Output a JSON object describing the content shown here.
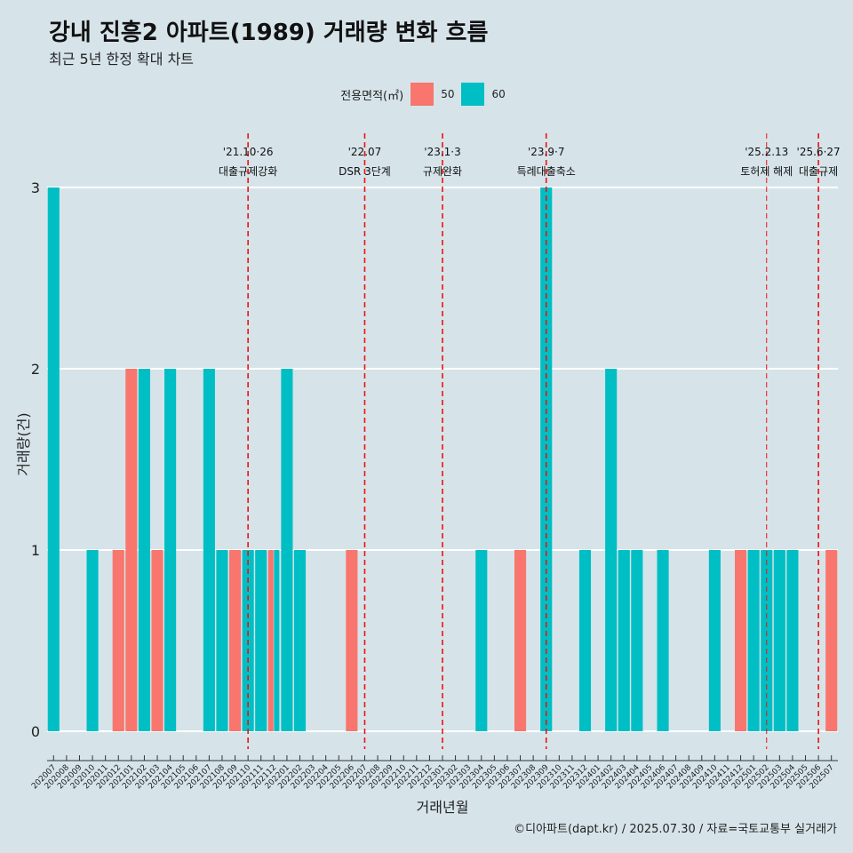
{
  "chart_data": {
    "type": "bar",
    "title": "강내 진흥2 아파트(1989) 거래량 변화 흐름",
    "subtitle": "최근 5년 한정 확대 차트",
    "xlabel": "거래년월",
    "ylabel": "거래량(건)",
    "ylim": [
      0,
      3
    ],
    "yticks": [
      0,
      1,
      2,
      3
    ],
    "legend": {
      "title": "전용면적(㎡)",
      "position": "top",
      "entries": [
        {
          "name": "50",
          "color": "#f8766d"
        },
        {
          "name": "60",
          "color": "#00bfc4"
        }
      ]
    },
    "categories": [
      "202007",
      "202008",
      "202009",
      "202010",
      "202011",
      "202012",
      "202101",
      "202102",
      "202103",
      "202104",
      "202105",
      "202106",
      "202107",
      "202108",
      "202109",
      "202110",
      "202111",
      "202112",
      "202201",
      "202202",
      "202203",
      "202204",
      "202205",
      "202206",
      "202207",
      "202208",
      "202209",
      "202210",
      "202211",
      "202212",
      "202301",
      "202302",
      "202303",
      "202304",
      "202305",
      "202306",
      "202307",
      "202308",
      "202309",
      "202310",
      "202311",
      "202312",
      "202401",
      "202402",
      "202403",
      "202404",
      "202405",
      "202406",
      "202407",
      "202408",
      "202409",
      "202410",
      "202411",
      "202412",
      "202501",
      "202502",
      "202503",
      "202504",
      "202505",
      "202506",
      "202507"
    ],
    "bars": [
      {
        "month": "202007",
        "area": "60",
        "value": 3
      },
      {
        "month": "202010",
        "area": "60",
        "value": 1
      },
      {
        "month": "202012",
        "area": "50",
        "value": 1
      },
      {
        "month": "202101",
        "area": "50",
        "value": 2
      },
      {
        "month": "202102",
        "area": "60",
        "value": 2
      },
      {
        "month": "202103",
        "area": "50",
        "value": 1
      },
      {
        "month": "202104",
        "area": "60",
        "value": 2
      },
      {
        "month": "202107",
        "area": "60",
        "value": 2
      },
      {
        "month": "202108",
        "area": "60",
        "value": 1
      },
      {
        "month": "202109",
        "area": "50",
        "value": 1
      },
      {
        "month": "202110",
        "area": "60",
        "value": 1
      },
      {
        "month": "202111",
        "area": "60",
        "value": 1
      },
      {
        "month": "202112",
        "area": "50",
        "value": 1
      },
      {
        "month": "202112",
        "area": "60",
        "value": 1
      },
      {
        "month": "202201",
        "area": "60",
        "value": 2
      },
      {
        "month": "202202",
        "area": "60",
        "value": 1
      },
      {
        "month": "202206",
        "area": "50",
        "value": 1
      },
      {
        "month": "202304",
        "area": "60",
        "value": 1
      },
      {
        "month": "202307",
        "area": "50",
        "value": 1
      },
      {
        "month": "202309",
        "area": "60",
        "value": 3
      },
      {
        "month": "202312",
        "area": "60",
        "value": 1
      },
      {
        "month": "202402",
        "area": "60",
        "value": 2
      },
      {
        "month": "202403",
        "area": "60",
        "value": 1
      },
      {
        "month": "202404",
        "area": "60",
        "value": 1
      },
      {
        "month": "202406",
        "area": "60",
        "value": 1
      },
      {
        "month": "202410",
        "area": "60",
        "value": 1
      },
      {
        "month": "202412",
        "area": "50",
        "value": 1
      },
      {
        "month": "202501",
        "area": "60",
        "value": 1
      },
      {
        "month": "202502",
        "area": "60",
        "value": 1
      },
      {
        "month": "202503",
        "area": "60",
        "value": 1
      },
      {
        "month": "202504",
        "area": "60",
        "value": 1
      },
      {
        "month": "202507",
        "area": "50",
        "value": 1
      }
    ],
    "events": [
      {
        "month": "202110",
        "date": "'21.10·26",
        "label": "대출규제강화",
        "small": false
      },
      {
        "month": "202207",
        "date": "'22.07",
        "label": "DSR 3단계",
        "small": false
      },
      {
        "month": "202301",
        "date": "'23.1·3",
        "label": "규제완화",
        "small": false
      },
      {
        "month": "202309",
        "date": "'23.9·7",
        "label": "특례대출축소",
        "small": false
      },
      {
        "month": "202502",
        "date": "'25.2.13",
        "label": "토허제 해제",
        "small": true
      },
      {
        "month": "202506",
        "date": "'25.6·27",
        "label": "대출규제",
        "small": false
      }
    ],
    "caption": "©디아파트(dapt.kr) / 2025.07.30 / 자료=국토교통부 실거래가"
  }
}
